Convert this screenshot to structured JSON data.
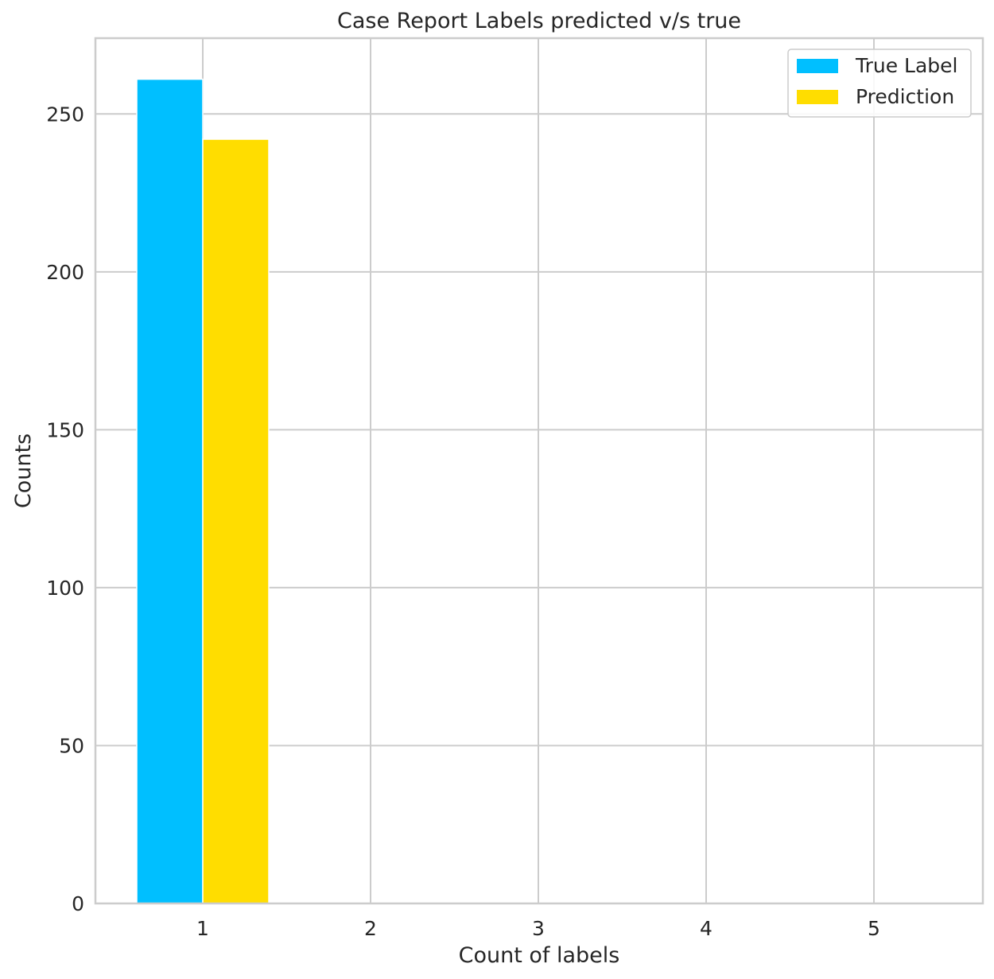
{
  "chart_data": {
    "type": "bar",
    "title": "Case Report Labels predicted v/s true",
    "xlabel": "Count of labels",
    "ylabel": "Counts",
    "categories": [
      "1",
      "2",
      "3",
      "4",
      "5"
    ],
    "ylim": [
      0,
      274
    ],
    "yticks": [
      0,
      50,
      100,
      150,
      200,
      250
    ],
    "grid": true,
    "legend_position": "top-right",
    "series": [
      {
        "name": "True Label",
        "color": "#00BFFF",
        "values": [
          261,
          0,
          0,
          0,
          0
        ]
      },
      {
        "name": "Prediction",
        "color": "#FFDD00",
        "values": [
          242,
          0,
          0,
          0,
          0
        ]
      }
    ]
  }
}
